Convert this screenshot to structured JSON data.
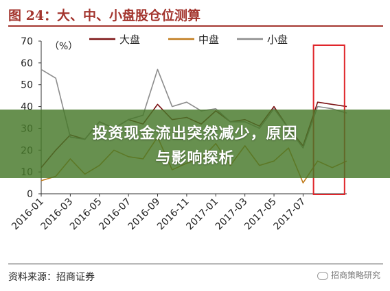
{
  "header": {
    "title": "图 24：大、中、小盘股仓位测算"
  },
  "overlay": {
    "line1": "投资现金流出突然减少，原因",
    "line2": "与影响探析"
  },
  "footer": {
    "source": "资料来源：招商证券",
    "watermark": "招商策略研究"
  },
  "colors": {
    "large": "#7b1113",
    "mid": "#c07a1a",
    "small": "#8c8c8c",
    "highlight": "#e0262b",
    "title": "#a3352e"
  },
  "chart_data": {
    "type": "line",
    "ylabel": "（%）",
    "ylim": [
      0,
      70
    ],
    "yticks": [
      0,
      10,
      20,
      30,
      40,
      50,
      60,
      70
    ],
    "xlim": [
      "2016-01",
      "2017-10"
    ],
    "xticks": [
      "2016-01",
      "2016-03",
      "2016-05",
      "2016-07",
      "2016-09",
      "2016-11",
      "2017-01",
      "2017-03",
      "2017-05",
      "2017-07"
    ],
    "x": [
      "2016-01",
      "2016-02",
      "2016-03",
      "2016-04",
      "2016-05",
      "2016-06",
      "2016-07",
      "2016-08",
      "2016-09",
      "2016-10",
      "2016-11",
      "2016-12",
      "2017-01",
      "2017-02",
      "2017-03",
      "2017-04",
      "2017-05",
      "2017-06",
      "2017-07",
      "2017-08",
      "2017-09",
      "2017-10"
    ],
    "series": [
      {
        "name": "大盘",
        "key": "large",
        "values": [
          12,
          20,
          27,
          25,
          33,
          30,
          34,
          32,
          41,
          34,
          35,
          32,
          38,
          33,
          34,
          31,
          40,
          30,
          22,
          42,
          41,
          40
        ]
      },
      {
        "name": "中盘",
        "key": "mid",
        "values": [
          6,
          8,
          16,
          9,
          13,
          20,
          17,
          16,
          26,
          11,
          14,
          16,
          23,
          13,
          22,
          13,
          15,
          21,
          5,
          15,
          12,
          15
        ]
      },
      {
        "name": "小盘",
        "key": "small",
        "values": [
          57,
          53,
          26,
          25,
          33,
          30,
          34,
          36,
          57,
          40,
          42,
          38,
          39,
          33,
          33,
          30,
          39,
          30,
          21,
          40,
          39,
          37
        ]
      }
    ],
    "legend_position": "top",
    "highlight": {
      "from": "2017-08",
      "to": "2017-09"
    }
  }
}
